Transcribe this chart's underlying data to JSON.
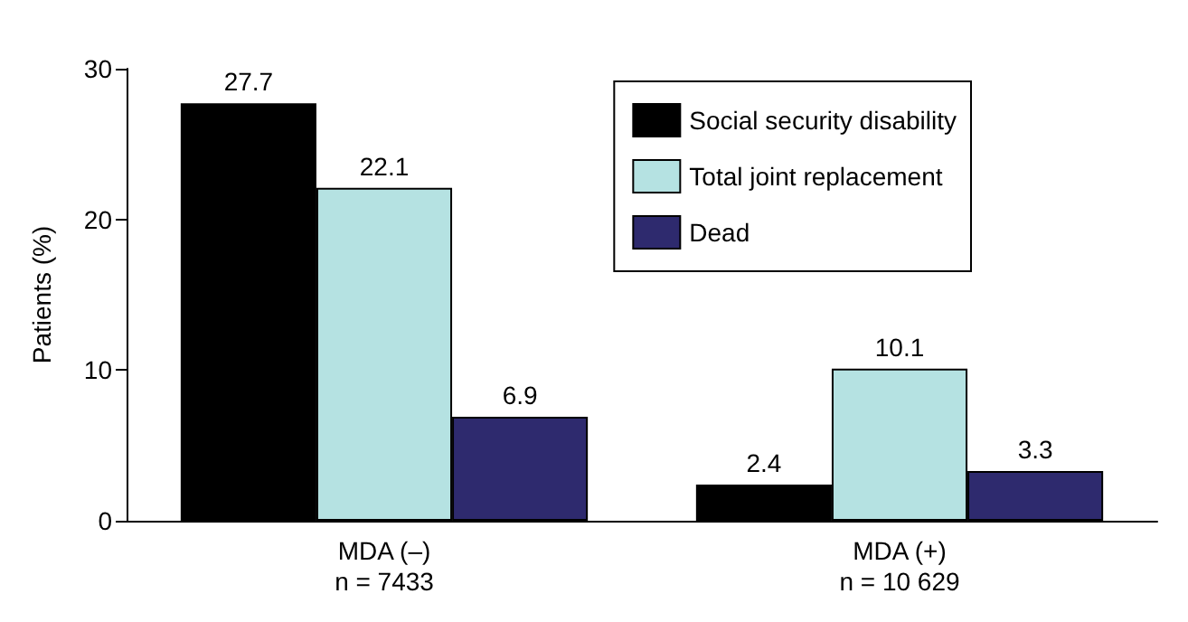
{
  "chart_data": {
    "type": "bar",
    "ylabel": "Patients (%)",
    "categories": [
      "MDA (–)\nn = 7433",
      "MDA (+)\nn = 10 629"
    ],
    "series": [
      {
        "name": "Social security disability",
        "color": "#000000",
        "values": [
          27.7,
          2.4
        ]
      },
      {
        "name": "Total joint replacement",
        "color": "#b5e2e2",
        "values": [
          22.1,
          10.1
        ]
      },
      {
        "name": "Dead",
        "color": "#2e2a6e",
        "values": [
          6.9,
          3.3
        ]
      }
    ],
    "ylim": [
      0,
      30
    ],
    "yticks": [
      0,
      10,
      20,
      30
    ],
    "grid": false,
    "legend": "top right",
    "data_labels": true
  }
}
